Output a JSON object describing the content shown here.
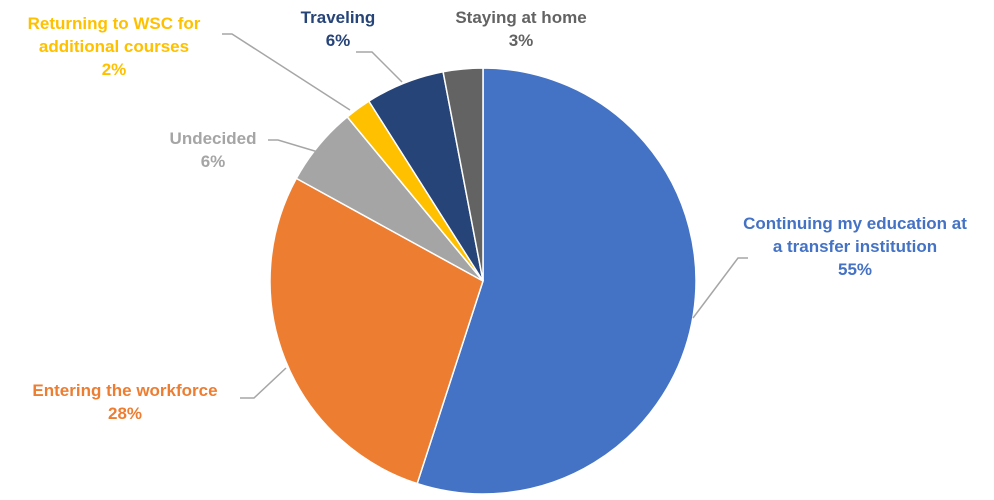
{
  "chart_data": {
    "type": "pie",
    "title": "",
    "slices": [
      {
        "label_lines": [
          "Continuing my education at",
          "a transfer institution"
        ],
        "value": 55,
        "value_label": "55%",
        "color": "#4472C4"
      },
      {
        "label_lines": [
          "Entering the workforce"
        ],
        "value": 28,
        "value_label": "28%",
        "color": "#ED7D31"
      },
      {
        "label_lines": [
          "Undecided"
        ],
        "value": 6,
        "value_label": "6%",
        "color": "#A5A5A5"
      },
      {
        "label_lines": [
          "Returning to WSC for",
          "additional courses"
        ],
        "value": 2,
        "value_label": "2%",
        "color": "#FFC000"
      },
      {
        "label_lines": [
          "Traveling"
        ],
        "value": 6,
        "value_label": "6%",
        "color": "#264478"
      },
      {
        "label_lines": [
          "Staying at home"
        ],
        "value": 3,
        "value_label": "3%",
        "color": "#636363"
      }
    ]
  }
}
